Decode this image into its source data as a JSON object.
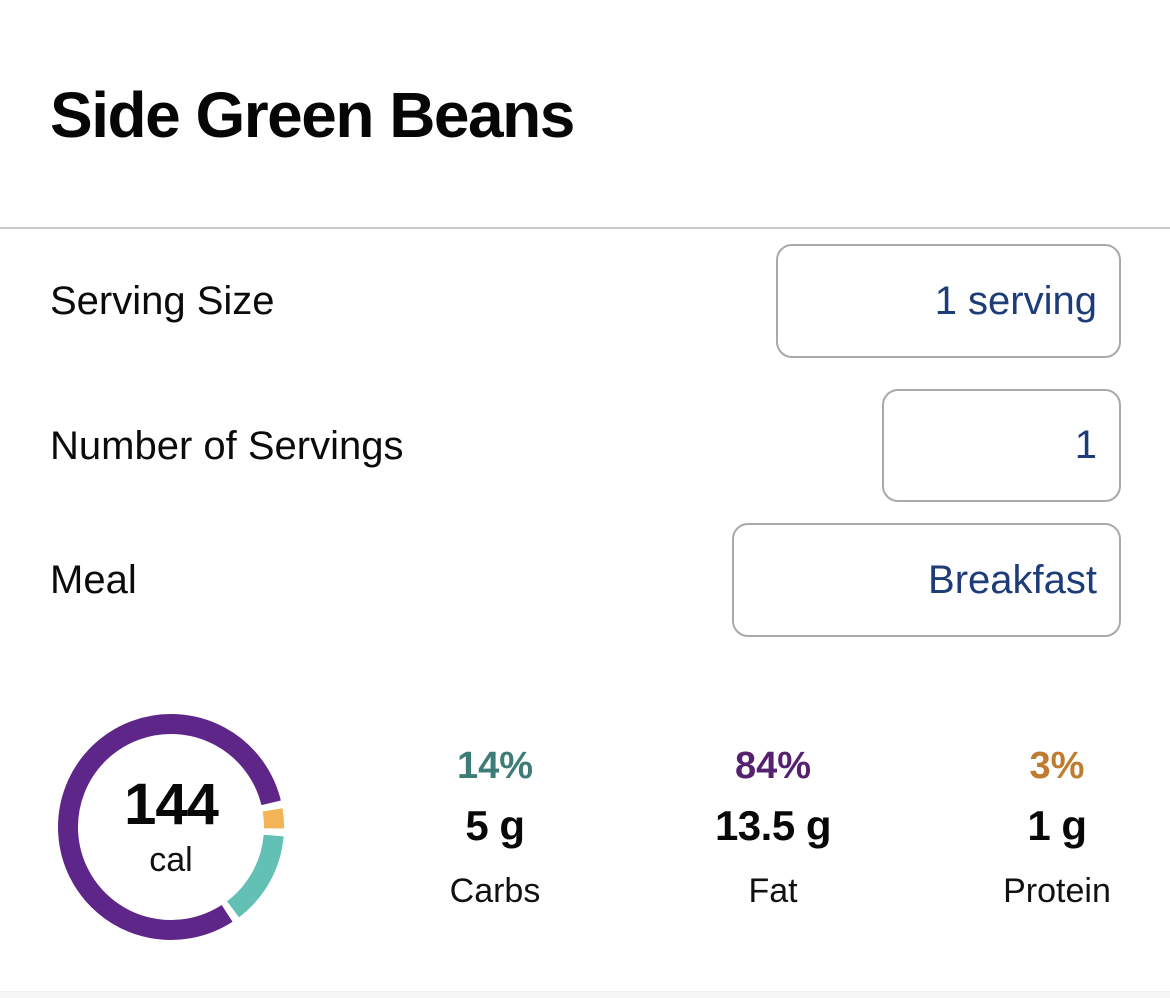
{
  "page": {
    "title": "Side Green Beans"
  },
  "form": {
    "serving_size": {
      "label": "Serving Size",
      "value": "1 serving"
    },
    "num_servings": {
      "label": "Number of Servings",
      "value": "1"
    },
    "meal": {
      "label": "Meal",
      "value": "Breakfast"
    }
  },
  "nutrition": {
    "calories_value": "144",
    "calories_unit": "cal",
    "macros": [
      {
        "name": "Carbs",
        "percent": "14%",
        "amount": "5 g",
        "percent_value": 14,
        "percent_color": "#3e7d77",
        "ring_color": "#63c0b4"
      },
      {
        "name": "Fat",
        "percent": "84%",
        "amount": "13.5 g",
        "percent_value": 84,
        "percent_color": "#56216f",
        "ring_color": "#5f2689"
      },
      {
        "name": "Protein",
        "percent": "3%",
        "amount": "1 g",
        "percent_value": 3,
        "percent_color": "#bf7c30",
        "ring_color": "#f2b455"
      }
    ],
    "ring": {
      "order": [
        1,
        2,
        0
      ],
      "start_deg": 147,
      "gap_deg": 4,
      "radius": 103,
      "stroke_width": 20
    }
  }
}
